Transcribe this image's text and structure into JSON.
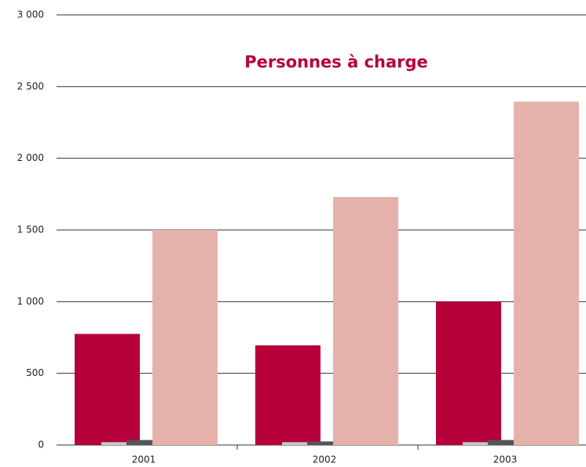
{
  "chart_data": {
    "type": "bar",
    "title": "Personnes à charge",
    "categories": [
      "2001",
      "2002",
      "2003"
    ],
    "series": [
      {
        "color": "#b5003a",
        "values": [
          775,
          695,
          1000
        ]
      },
      {
        "color": "#c8c8c8",
        "values": [
          20,
          20,
          20
        ]
      },
      {
        "color": "#555555",
        "values": [
          35,
          25,
          35
        ]
      },
      {
        "color": "#e4b2ab",
        "values": [
          1500,
          1730,
          2395
        ]
      }
    ],
    "ylim": [
      0,
      3000
    ],
    "yticks": [
      0,
      500,
      {
        "value": 1000,
        "label": "1 000"
      },
      {
        "value": 1500,
        "label": "1 500"
      },
      {
        "value": 2000,
        "label": "2 000"
      },
      {
        "value": 2500,
        "label": "2 500"
      },
      {
        "value": 3000,
        "label": "3 000"
      }
    ],
    "grid": true
  }
}
